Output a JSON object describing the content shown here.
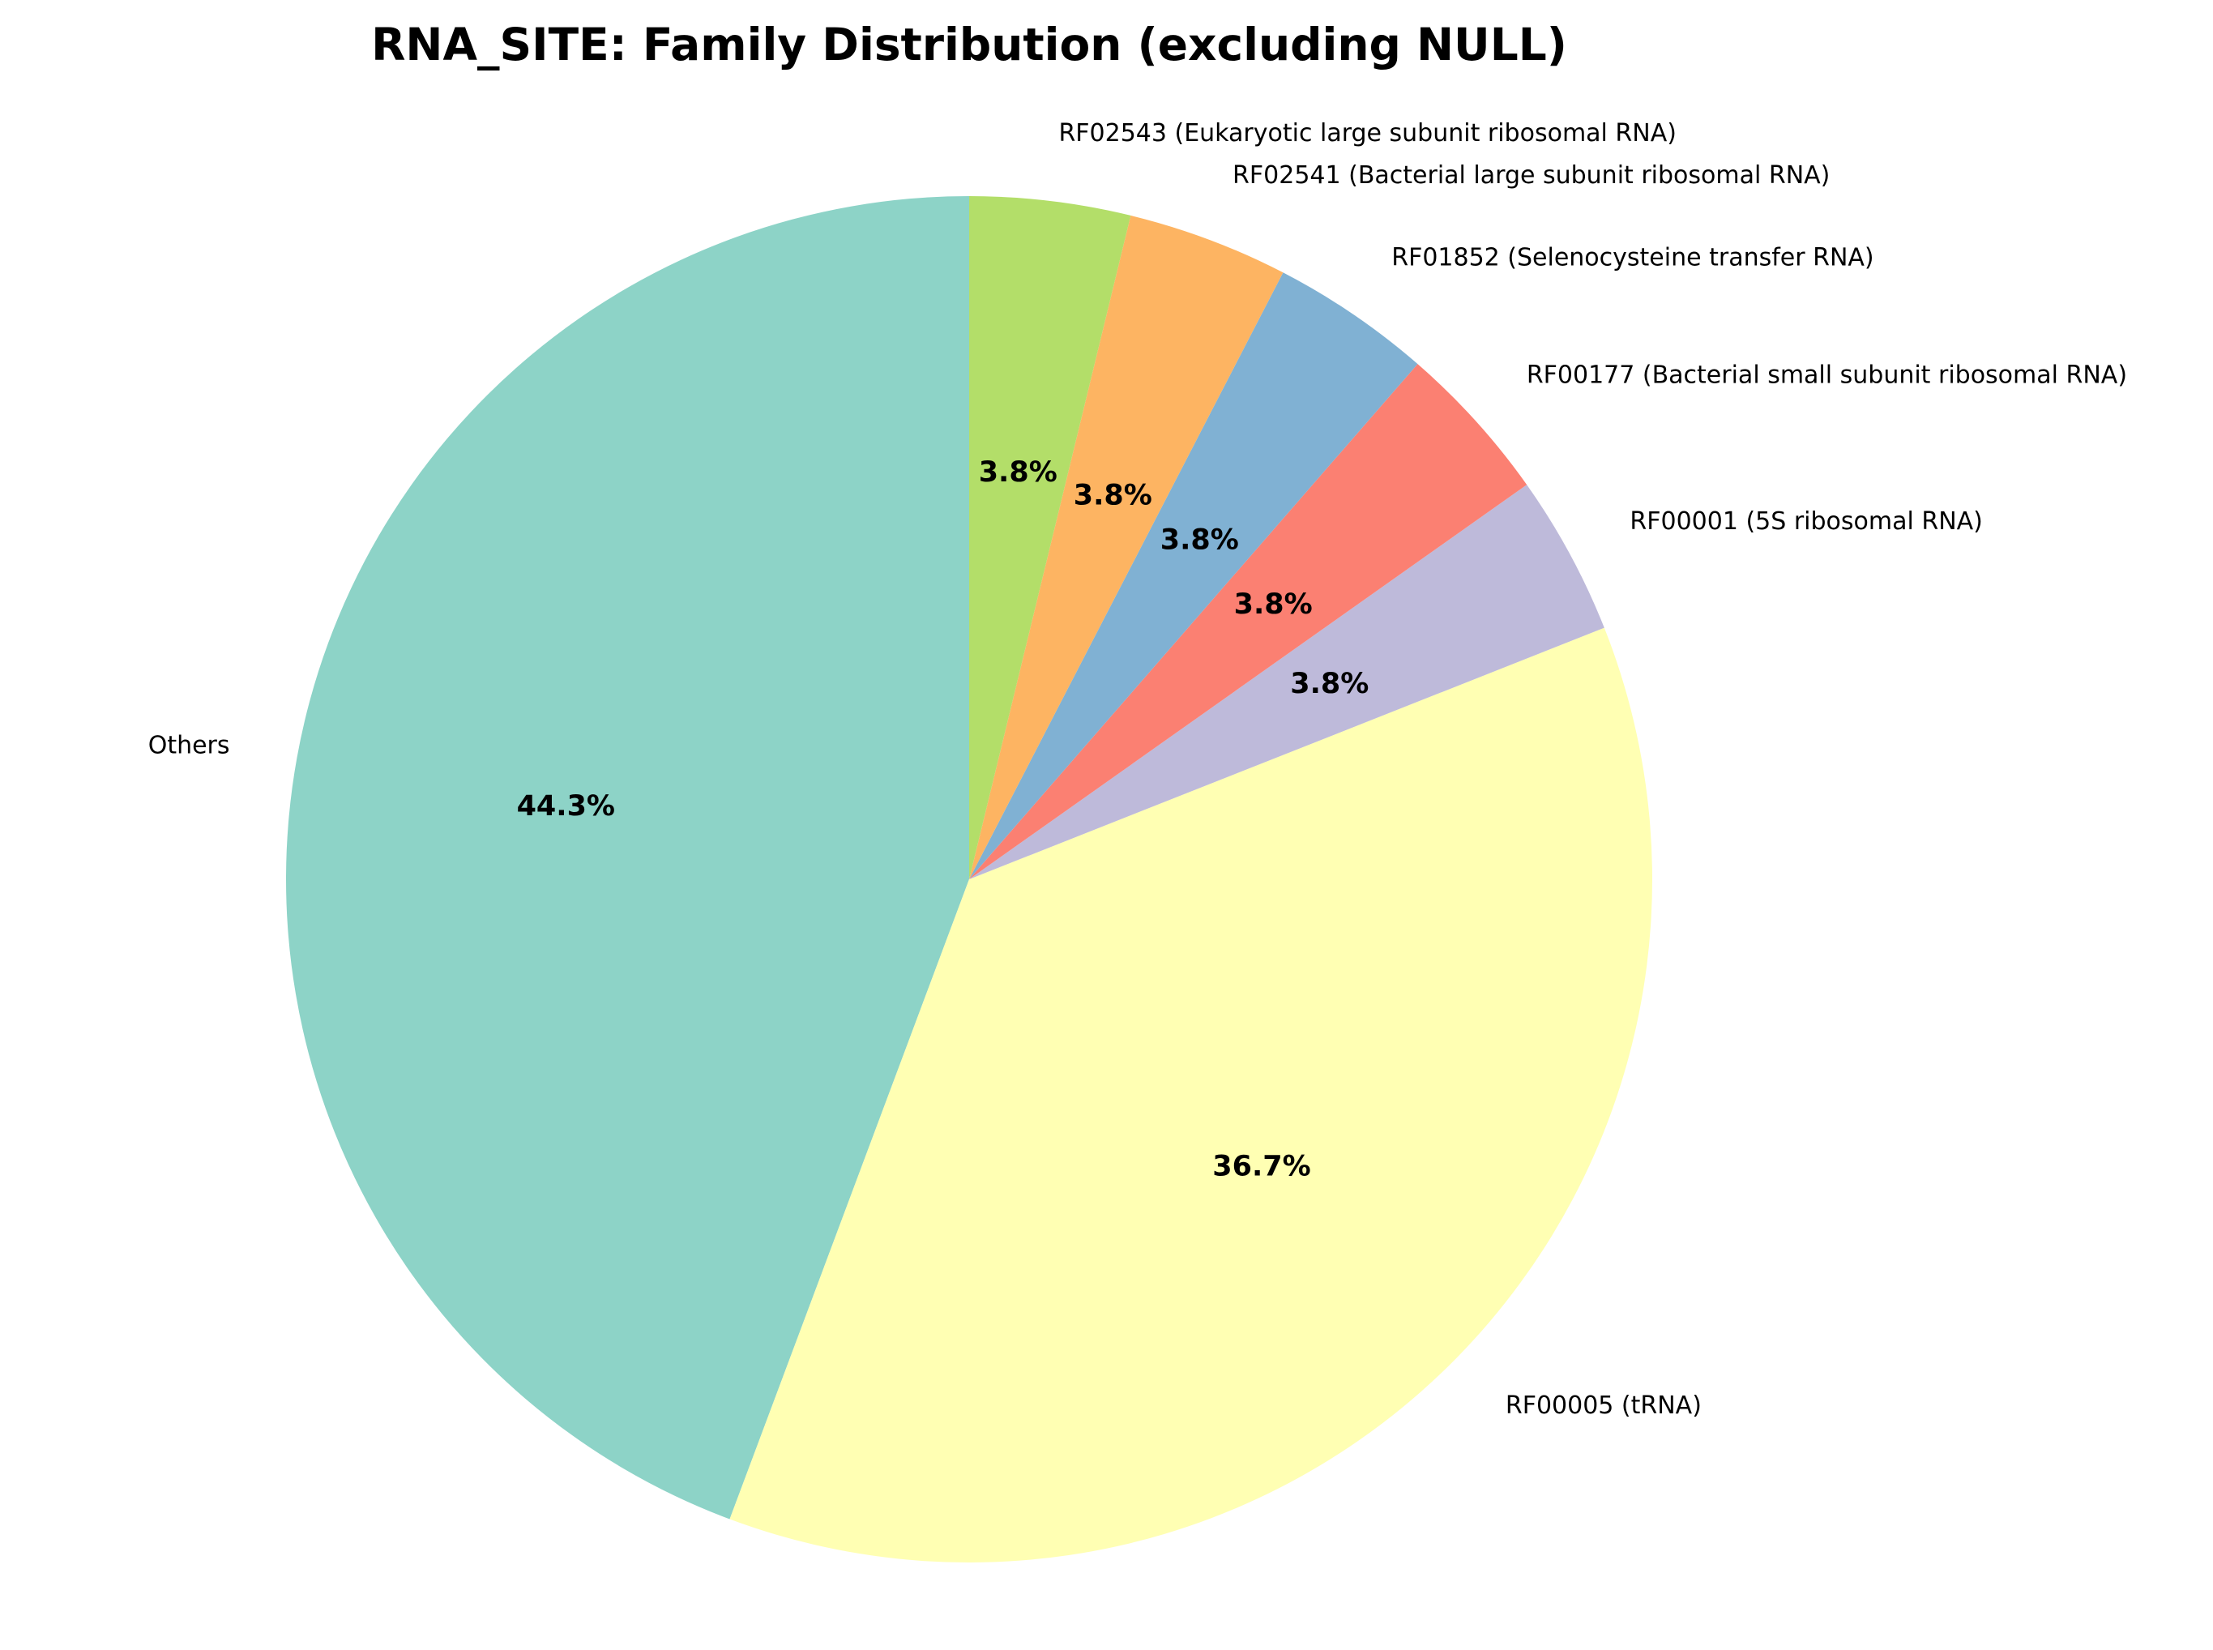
{
  "chart_data": {
    "type": "pie",
    "title": "RNA_SITE: Family Distribution (excluding NULL)",
    "start_angle_deg": 90,
    "direction": "counterclockwise",
    "slices": [
      {
        "label": "Others",
        "percent": 44.3,
        "percent_label": "44.3%",
        "color": "#8dd3c7"
      },
      {
        "label": "RF00005 (tRNA)",
        "percent": 36.7,
        "percent_label": "36.7%",
        "color": "#ffffb3"
      },
      {
        "label": "RF00001 (5S ribosomal RNA)",
        "percent": 3.8,
        "percent_label": "3.8%",
        "color": "#bebada"
      },
      {
        "label": "RF00177 (Bacterial small subunit ribosomal RNA)",
        "percent": 3.8,
        "percent_label": "3.8%",
        "color": "#fb8072"
      },
      {
        "label": "RF01852 (Selenocysteine transfer RNA)",
        "percent": 3.8,
        "percent_label": "3.8%",
        "color": "#80b1d3"
      },
      {
        "label": "RF02541 (Bacterial large subunit ribosomal RNA)",
        "percent": 3.8,
        "percent_label": "3.8%",
        "color": "#fdb462"
      },
      {
        "label": "RF02543 (Eukaryotic large subunit ribosomal RNA)",
        "percent": 3.8,
        "percent_label": "3.8%",
        "color": "#b3de69"
      }
    ]
  }
}
